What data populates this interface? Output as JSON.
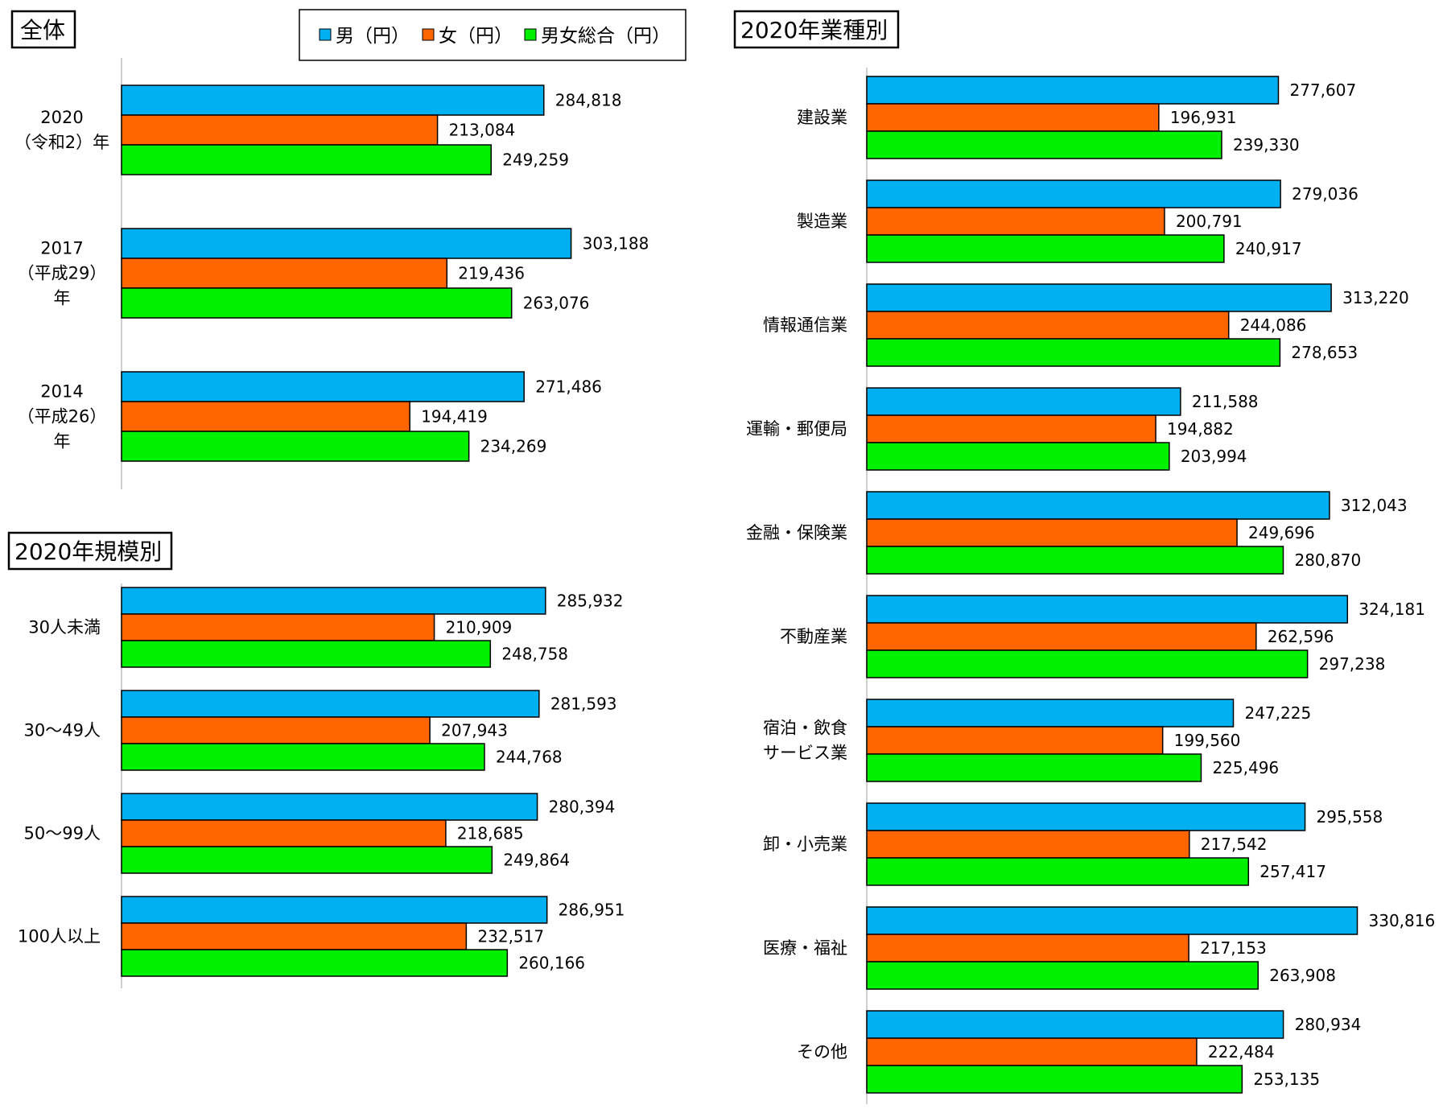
{
  "colors": {
    "male": "#00B0F0",
    "female": "#FF6600",
    "total": "#00F000"
  },
  "legend": {
    "items": [
      "男（円）",
      "女（円）",
      "男女総合（円）"
    ]
  },
  "chart_data": [
    {
      "type": "bar",
      "orientation": "horizontal",
      "title": "全体",
      "categories": [
        [
          "2020",
          "（令和2）年"
        ],
        [
          "2017",
          "（平成29）",
          "年"
        ],
        [
          "2014",
          "（平成26）",
          "年"
        ]
      ],
      "series": [
        {
          "name": "男（円）",
          "values": [
            284818,
            303188,
            271486
          ],
          "labels": [
            "284,818",
            "303,188",
            "271,486"
          ]
        },
        {
          "name": "女（円）",
          "values": [
            213084,
            219436,
            194419
          ],
          "labels": [
            "213,084",
            "219,436",
            "194,419"
          ]
        },
        {
          "name": "男女総合（円）",
          "values": [
            249259,
            263076,
            234269
          ],
          "labels": [
            "249,259",
            "263,076",
            "234,269"
          ]
        }
      ],
      "xlim": [
        0,
        330000
      ]
    },
    {
      "type": "bar",
      "orientation": "horizontal",
      "title": "2020年規模別",
      "categories": [
        [
          "30人未満"
        ],
        [
          "30～49人"
        ],
        [
          "50～99人"
        ],
        [
          "100人以上"
        ]
      ],
      "series": [
        {
          "name": "男（円）",
          "values": [
            285932,
            281593,
            280394,
            286951
          ],
          "labels": [
            "285,932",
            "281,593",
            "280,394",
            "286,951"
          ]
        },
        {
          "name": "女（円）",
          "values": [
            210909,
            207943,
            218685,
            232517
          ],
          "labels": [
            "210,909",
            "207,943",
            "218,685",
            "232,517"
          ]
        },
        {
          "name": "男女総合（円）",
          "values": [
            248758,
            244768,
            249864,
            260166
          ],
          "labels": [
            "248,758",
            "244,768",
            "249,864",
            "260,166"
          ]
        }
      ],
      "xlim": [
        0,
        330000
      ]
    },
    {
      "type": "bar",
      "orientation": "horizontal",
      "title": "2020年業種別",
      "categories": [
        [
          "建設業"
        ],
        [
          "製造業"
        ],
        [
          "情報通信業"
        ],
        [
          "運輸・郵便局"
        ],
        [
          "金融・保険業"
        ],
        [
          "不動産業"
        ],
        [
          "宿泊・飲食",
          "サービス業"
        ],
        [
          "卸・小売業"
        ],
        [
          "医療・福祉"
        ],
        [
          "その他"
        ]
      ],
      "series": [
        {
          "name": "男（円）",
          "values": [
            277607,
            279036,
            313220,
            211588,
            312043,
            324181,
            247225,
            295558,
            330816,
            280934
          ],
          "labels": [
            "277,607",
            "279,036",
            "313,220",
            "211,588",
            "312,043",
            "324,181",
            "247,225",
            "295,558",
            "330,816",
            "280,934"
          ]
        },
        {
          "name": "女（円）",
          "values": [
            196931,
            200791,
            244086,
            194882,
            249696,
            262596,
            199560,
            217542,
            217153,
            222484
          ],
          "labels": [
            "196,931",
            "200,791",
            "244,086",
            "194,882",
            "249,696",
            "262,596",
            "199,560",
            "217,542",
            "217,153",
            "222,484"
          ]
        },
        {
          "name": "男女総合（円）",
          "values": [
            239330,
            240917,
            278653,
            203994,
            280870,
            297238,
            225496,
            257417,
            263908,
            253135
          ],
          "labels": [
            "239,330",
            "240,917",
            "278,653",
            "203,994",
            "280,870",
            "297,238",
            "225,496",
            "257,417",
            "263,908",
            "253,135"
          ]
        }
      ],
      "xlim": [
        0,
        330000
      ]
    }
  ]
}
